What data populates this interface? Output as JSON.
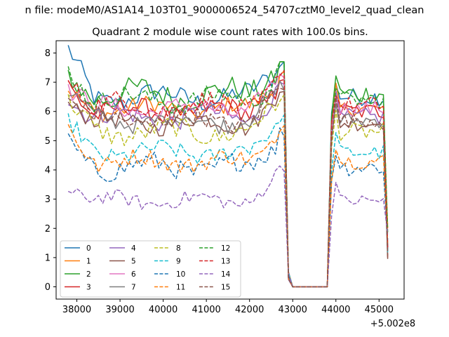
{
  "chart_data": {
    "type": "line",
    "suptitle": "n file: modeM0/AS1A14_103T01_9000006524_54707cztM0_level2_quad_clean",
    "title": "Quadrant 2 module wise count rates with 100.0s bins.",
    "xlabel": "",
    "ylabel": "",
    "x_offset_label": "+5.002e8",
    "x_start": 37800,
    "x_step": 100,
    "gap_x": [
      43000,
      43800
    ],
    "xlim": [
      37520,
      45580
    ],
    "ylim": [
      -0.42,
      8.42
    ],
    "xticks": [
      38000,
      39000,
      40000,
      41000,
      42000,
      43000,
      44000,
      45000
    ],
    "xtick_labels": [
      "38000",
      "39000",
      "40000",
      "41000",
      "42000",
      "43000",
      "44000",
      "45000"
    ],
    "yticks": [
      0,
      1,
      2,
      3,
      4,
      5,
      6,
      7,
      8
    ],
    "ytick_labels": [
      "0",
      "1",
      "2",
      "3",
      "4",
      "5",
      "6",
      "7",
      "8"
    ],
    "grid": false,
    "legend_position": "lower-left",
    "legend_columns": 4,
    "series": [
      {
        "name": "0",
        "color": "#1f77b4",
        "dash": "solid",
        "base": 6.5,
        "start": 7.95,
        "end": 6.9,
        "amp": 0.35
      },
      {
        "name": "1",
        "color": "#ff7f0e",
        "dash": "solid",
        "base": 6.1,
        "start": 6.6,
        "end": 6.3,
        "amp": 0.3
      },
      {
        "name": "2",
        "color": "#2ca02c",
        "dash": "solid",
        "base": 6.6,
        "start": 7.2,
        "end": 6.5,
        "amp": 0.4
      },
      {
        "name": "3",
        "color": "#d62728",
        "dash": "solid",
        "base": 6.0,
        "start": 7.0,
        "end": 6.0,
        "amp": 0.35
      },
      {
        "name": "4",
        "color": "#9467bd",
        "dash": "solid",
        "base": 5.8,
        "start": 6.6,
        "end": 5.9,
        "amp": 0.35
      },
      {
        "name": "5",
        "color": "#8c564b",
        "dash": "solid",
        "base": 5.6,
        "start": 6.4,
        "end": 5.7,
        "amp": 0.3
      },
      {
        "name": "6",
        "color": "#e377c2",
        "dash": "solid",
        "base": 6.1,
        "start": 6.8,
        "end": 6.1,
        "amp": 0.3
      },
      {
        "name": "7",
        "color": "#7f7f7f",
        "dash": "solid",
        "base": 5.7,
        "start": 6.7,
        "end": 5.8,
        "amp": 0.3
      },
      {
        "name": "8",
        "color": "#bcbd22",
        "dash": "dashed",
        "base": 5.3,
        "start": 6.2,
        "end": 5.0,
        "amp": 0.35
      },
      {
        "name": "9",
        "color": "#17becf",
        "dash": "dashed",
        "base": 4.6,
        "start": 5.5,
        "end": 4.5,
        "amp": 0.3
      },
      {
        "name": "10",
        "color": "#1f77b4",
        "dash": "dashed",
        "base": 4.1,
        "start": 4.8,
        "end": 4.4,
        "amp": 0.35
      },
      {
        "name": "11",
        "color": "#ff7f0e",
        "dash": "dashed",
        "base": 4.3,
        "start": 5.45,
        "end": 4.5,
        "amp": 0.3
      },
      {
        "name": "12",
        "color": "#2ca02c",
        "dash": "dashed",
        "base": 6.4,
        "start": 7.5,
        "end": 6.3,
        "amp": 0.35
      },
      {
        "name": "13",
        "color": "#d62728",
        "dash": "dashed",
        "base": 6.2,
        "start": 7.2,
        "end": 6.0,
        "amp": 0.35
      },
      {
        "name": "14",
        "color": "#9467bd",
        "dash": "dashed",
        "base": 2.95,
        "start": 3.35,
        "end": 2.9,
        "amp": 0.25
      },
      {
        "name": "15",
        "color": "#8c564b",
        "dash": "dashed",
        "base": 5.7,
        "start": 6.5,
        "end": 5.7,
        "amp": 0.3
      }
    ]
  }
}
